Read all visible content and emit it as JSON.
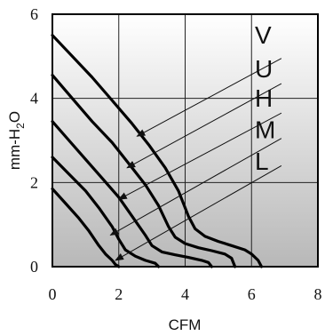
{
  "chart_data": {
    "type": "line",
    "xlabel": "CFM",
    "ylabel": "mm-H",
    "ylabel_sub": "2",
    "ylabel_tail": "O",
    "xlim": [
      0,
      8
    ],
    "ylim": [
      0,
      6
    ],
    "x_ticks": [
      "0",
      "2",
      "4",
      "6",
      "8"
    ],
    "y_ticks": [
      "0",
      "2",
      "4",
      "6"
    ],
    "grid": true,
    "background_gradient": [
      "#ffffff",
      "#b8b8b8"
    ],
    "series": [
      {
        "name": "V",
        "points": [
          [
            0,
            5.5
          ],
          [
            0.6,
            5.0
          ],
          [
            1.2,
            4.5
          ],
          [
            1.8,
            3.95
          ],
          [
            2.4,
            3.4
          ],
          [
            2.9,
            2.9
          ],
          [
            3.4,
            2.35
          ],
          [
            3.8,
            1.8
          ],
          [
            4.1,
            1.2
          ],
          [
            4.3,
            0.9
          ],
          [
            4.6,
            0.72
          ],
          [
            5.0,
            0.6
          ],
          [
            5.4,
            0.5
          ],
          [
            5.8,
            0.4
          ],
          [
            6.0,
            0.3
          ],
          [
            6.2,
            0.15
          ],
          [
            6.3,
            0
          ]
        ],
        "label_xy": [
          6.1,
          5.3
        ],
        "arrow_from": [
          6.9,
          4.95
        ],
        "arrow_to": [
          2.55,
          3.1
        ]
      },
      {
        "name": "U",
        "points": [
          [
            0,
            4.55
          ],
          [
            0.6,
            4.0
          ],
          [
            1.2,
            3.45
          ],
          [
            1.8,
            2.95
          ],
          [
            2.3,
            2.45
          ],
          [
            2.8,
            1.95
          ],
          [
            3.2,
            1.45
          ],
          [
            3.5,
            0.95
          ],
          [
            3.7,
            0.7
          ],
          [
            4.0,
            0.55
          ],
          [
            4.4,
            0.45
          ],
          [
            4.8,
            0.38
          ],
          [
            5.2,
            0.3
          ],
          [
            5.4,
            0.2
          ],
          [
            5.5,
            0
          ]
        ],
        "label_xy": [
          6.1,
          4.5
        ],
        "arrow_from": [
          6.9,
          4.35
        ],
        "arrow_to": [
          2.25,
          2.35
        ]
      },
      {
        "name": "H",
        "points": [
          [
            0,
            3.45
          ],
          [
            0.5,
            3.0
          ],
          [
            1.0,
            2.55
          ],
          [
            1.5,
            2.1
          ],
          [
            2.0,
            1.65
          ],
          [
            2.4,
            1.2
          ],
          [
            2.8,
            0.75
          ],
          [
            3.0,
            0.5
          ],
          [
            3.3,
            0.35
          ],
          [
            3.7,
            0.28
          ],
          [
            4.1,
            0.22
          ],
          [
            4.5,
            0.15
          ],
          [
            4.7,
            0.1
          ],
          [
            4.8,
            0
          ]
        ],
        "label_xy": [
          6.1,
          3.8
        ],
        "arrow_from": [
          6.9,
          3.65
        ],
        "arrow_to": [
          2.0,
          1.6
        ]
      },
      {
        "name": "M",
        "points": [
          [
            0,
            2.6
          ],
          [
            0.5,
            2.2
          ],
          [
            1.0,
            1.8
          ],
          [
            1.4,
            1.4
          ],
          [
            1.8,
            0.95
          ],
          [
            2.0,
            0.65
          ],
          [
            2.2,
            0.4
          ],
          [
            2.5,
            0.25
          ],
          [
            2.8,
            0.15
          ],
          [
            3.1,
            0.08
          ],
          [
            3.2,
            0
          ]
        ],
        "label_xy": [
          6.1,
          3.05
        ],
        "arrow_from": [
          6.9,
          3.05
        ],
        "arrow_to": [
          1.75,
          0.75
        ]
      },
      {
        "name": "L",
        "points": [
          [
            0,
            1.85
          ],
          [
            0.4,
            1.5
          ],
          [
            0.8,
            1.15
          ],
          [
            1.1,
            0.85
          ],
          [
            1.4,
            0.5
          ],
          [
            1.6,
            0.3
          ],
          [
            1.8,
            0.15
          ],
          [
            1.9,
            0.05
          ],
          [
            2.0,
            0
          ]
        ],
        "label_xy": [
          6.1,
          2.3
        ],
        "arrow_from": [
          6.9,
          2.4
        ],
        "arrow_to": [
          1.9,
          0.15
        ]
      }
    ]
  }
}
